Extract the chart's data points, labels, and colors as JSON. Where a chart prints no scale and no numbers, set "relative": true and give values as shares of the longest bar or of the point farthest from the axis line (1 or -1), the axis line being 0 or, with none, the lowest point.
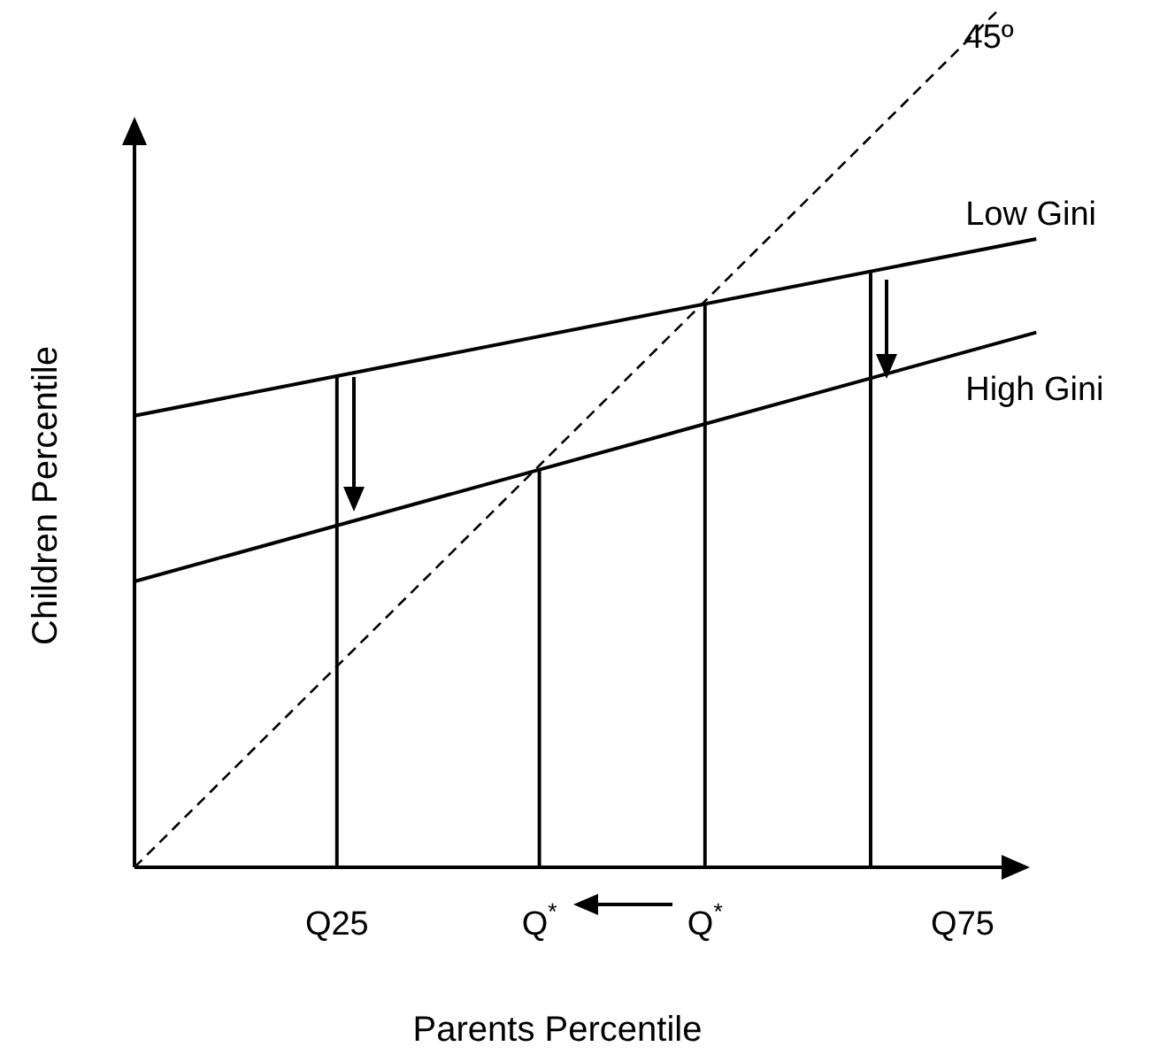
{
  "chart_data": {
    "type": "line",
    "relative": true,
    "xlabel": "Parents Percentile",
    "ylabel": "Children Percentile",
    "categories": [
      null,
      null,
      null,
      null,
      null,
      null,
      null,
      null,
      null,
      null,
      null,
      "Q25",
      null,
      null,
      null,
      null,
      null,
      null,
      null,
      null,
      null,
      null,
      "Q$^{*}$",
      null,
      null,
      null,
      null,
      null,
      null,
      null,
      null,
      "Q$^{*}$",
      null,
      null,
      null,
      null,
      null,
      null,
      null,
      null,
      null,
      null,
      null,
      null,
      null,
      "Q75",
      null,
      null,
      null,
      null,
      null
    ],
    "legend": false,
    "marker": "none",
    "series": [
      {
        "name": "Low Gini",
        "color": "#000000",
        "line_style": "solid",
        "values": [
          0.526,
          null,
          null,
          null,
          null,
          null,
          null,
          null,
          null,
          null,
          null,
          null,
          null,
          null,
          null,
          null,
          null,
          null,
          null,
          null,
          null,
          null,
          null,
          null,
          null,
          null,
          null,
          null,
          null,
          null,
          null,
          null,
          null,
          null,
          null,
          null,
          null,
          null,
          null,
          null,
          null,
          null,
          null,
          null,
          null,
          null,
          null,
          null,
          null,
          0.732,
          null
        ]
      },
      {
        "name": "High Gini",
        "color": "#000000",
        "line_style": "solid",
        "values": [
          0.333,
          null,
          null,
          null,
          null,
          null,
          null,
          null,
          null,
          null,
          null,
          null,
          null,
          null,
          null,
          null,
          null,
          null,
          null,
          null,
          null,
          null,
          null,
          null,
          null,
          null,
          null,
          null,
          null,
          null,
          null,
          null,
          null,
          null,
          null,
          null,
          null,
          null,
          null,
          null,
          null,
          null,
          null,
          null,
          null,
          null,
          null,
          null,
          null,
          0.623,
          null
        ]
      },
      {
        "name": "45º",
        "color": "#000000",
        "line_style": "dashed",
        "values": [
          0,
          null,
          null,
          null,
          null,
          null,
          null,
          null,
          null,
          null,
          null,
          null,
          null,
          null,
          null,
          null,
          null,
          null,
          null,
          null,
          null,
          null,
          null,
          null,
          null,
          null,
          null,
          null,
          null,
          null,
          null,
          null,
          null,
          null,
          null,
          null,
          null,
          null,
          null,
          null,
          null,
          null,
          null,
          null,
          null,
          null,
          null,
          1,
          null,
          null,
          null
        ]
      },
      {
        "type": "bar",
        "color": "#000000",
        "values": [
          null,
          null,
          null,
          null,
          null,
          null,
          null,
          null,
          null,
          null,
          null,
          0.572,
          null,
          null,
          null,
          null,
          null,
          null,
          null,
          null,
          null,
          null,
          0.463,
          null,
          null,
          null,
          null,
          null,
          null,
          null,
          null,
          0.656,
          null,
          null,
          null,
          null,
          null,
          null,
          null,
          null,
          0.694,
          null,
          null,
          null,
          null,
          null,
          null,
          null,
          null,
          null,
          null
        ]
      }
    ]
  }
}
